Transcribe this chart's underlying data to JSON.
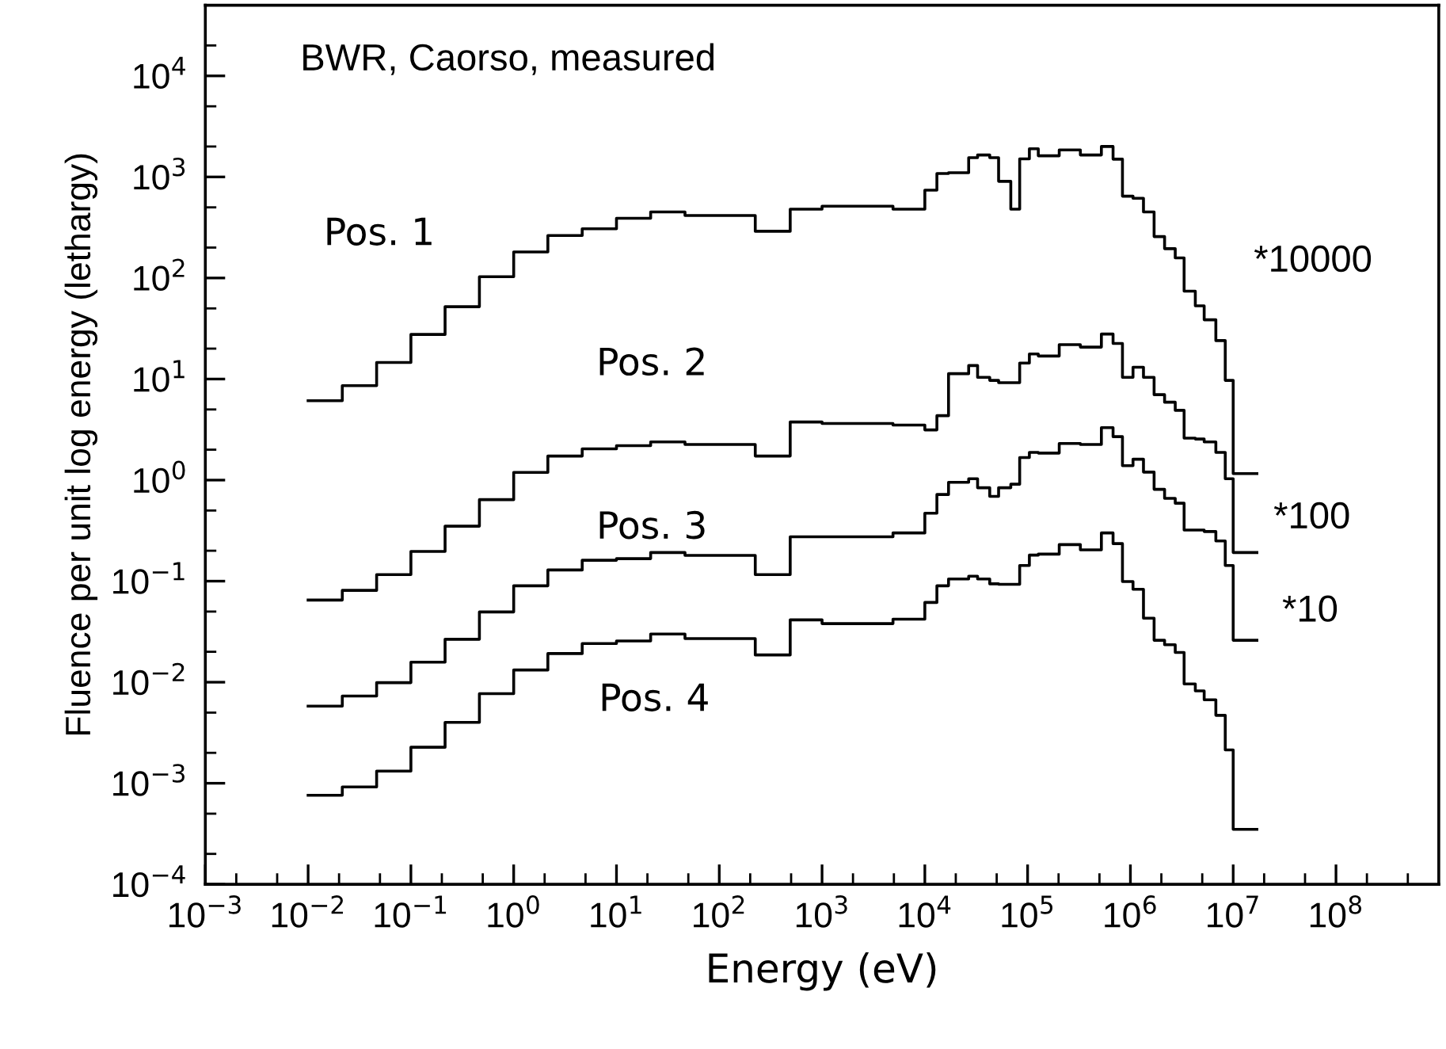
{
  "chart_data": {
    "type": "step",
    "xlabel": "Energy (eV)",
    "ylabel": "Fluence per unit log energy (lethargy)",
    "log": "xy",
    "grid": false,
    "legend": false,
    "marker": "none",
    "line_style": "solid",
    "xlim": [
      0.001,
      1000000000
    ],
    "ylim": [
      0.0001,
      50000
    ],
    "xticks": [
      {
        "value": 0.001,
        "label": "10$^{−3}$"
      },
      {
        "value": 0.01,
        "label": "10$^{−2}$"
      },
      {
        "value": 0.1,
        "label": "10$^{−1}$"
      },
      {
        "value": 1,
        "label": "10$^{0}$"
      },
      {
        "value": 10,
        "label": "10$^{1}$"
      },
      {
        "value": 100,
        "label": "10$^{2}$"
      },
      {
        "value": 1000,
        "label": "10$^{3}$"
      },
      {
        "value": 10000,
        "label": "10$^{4}$"
      },
      {
        "value": 100000,
        "label": "10$^{5}$"
      },
      {
        "value": 1000000,
        "label": "10$^{6}$"
      },
      {
        "value": 10000000,
        "label": "10$^{7}$"
      },
      {
        "value": 100000000,
        "label": "10$^{8}$"
      }
    ],
    "yticks": [
      {
        "value": 0.0001,
        "label": "10$^{−4}$"
      },
      {
        "value": 0.001,
        "label": "10$^{−3}$"
      },
      {
        "value": 0.01,
        "label": "10$^{−2}$"
      },
      {
        "value": 0.1,
        "label": "10$^{−1}$"
      },
      {
        "value": 1,
        "label": "10$^{0}$"
      },
      {
        "value": 10,
        "label": "10$^{1}$"
      },
      {
        "value": 100,
        "label": "10$^{2}$"
      },
      {
        "value": 1000,
        "label": "10$^{3}$"
      },
      {
        "value": 10000,
        "label": "10$^{4}$"
      }
    ],
    "x": [
      0.01,
      0.0215,
      0.0464,
      0.1,
      0.215,
      0.464,
      1,
      2.15,
      4.64,
      10,
      21.5,
      46.4,
      224,
      490,
      1000,
      4900,
      10000,
      13100,
      17000,
      26700,
      32600,
      42800,
      52200,
      68600,
      83700,
      104000,
      127000,
      203000,
      326000,
      522000,
      678000,
      837000,
      1060000,
      1340000,
      1700000,
      2150000,
      2730000,
      3330000,
      4280000,
      5220000,
      6780000,
      8370000,
      10000000,
      17000000
    ],
    "series": [
      {
        "name": "Pos. 1",
        "color": "#000000",
        "values": [
          6.1,
          8.6,
          14.6,
          27.6,
          52,
          103,
          181,
          263,
          307,
          390,
          450,
          415,
          290,
          480,
          513,
          480,
          740,
          1080,
          1100,
          1550,
          1650,
          1550,
          905,
          480,
          1510,
          1900,
          1620,
          1850,
          1650,
          2000,
          1500,
          645,
          615,
          450,
          257,
          195,
          158,
          74,
          53,
          38.6,
          24,
          9.7,
          1.16,
          1.16
        ]
      },
      {
        "name": "Pos. 2",
        "color": "#000000",
        "values": [
          0.065,
          0.081,
          0.116,
          0.197,
          0.35,
          0.64,
          1.19,
          1.73,
          2.04,
          2.19,
          2.39,
          2.25,
          1.73,
          3.76,
          3.63,
          3.5,
          3.14,
          4.34,
          11.3,
          13.6,
          10.4,
          9.7,
          9.2,
          9.2,
          14.4,
          17.7,
          16.9,
          21.9,
          20.7,
          27.9,
          22.5,
          10.4,
          13.1,
          10.4,
          7.0,
          5.9,
          4.9,
          2.6,
          2.55,
          2.39,
          1.88,
          1.03,
          0.192,
          0.192
        ]
      },
      {
        "name": "Pos. 3",
        "color": "#000000",
        "values": [
          0.0058,
          0.0073,
          0.0099,
          0.0158,
          0.0266,
          0.0496,
          0.09,
          0.129,
          0.161,
          0.167,
          0.192,
          0.18,
          0.116,
          0.275,
          0.275,
          0.3,
          0.47,
          0.72,
          0.95,
          1.03,
          0.84,
          0.69,
          0.84,
          0.91,
          1.67,
          1.88,
          1.85,
          2.3,
          2.25,
          3.3,
          2.69,
          1.39,
          1.61,
          1.2,
          0.81,
          0.66,
          0.59,
          0.32,
          0.32,
          0.31,
          0.25,
          0.143,
          0.026,
          0.026
        ]
      },
      {
        "name": "Pos. 4",
        "color": "#000000",
        "values": [
          0.00076,
          0.00092,
          0.00132,
          0.00227,
          0.004,
          0.0077,
          0.0132,
          0.0192,
          0.0241,
          0.0256,
          0.03,
          0.027,
          0.0186,
          0.0414,
          0.038,
          0.042,
          0.0615,
          0.09,
          0.105,
          0.112,
          0.105,
          0.094,
          0.093,
          0.093,
          0.143,
          0.181,
          0.185,
          0.23,
          0.204,
          0.3,
          0.235,
          0.099,
          0.083,
          0.043,
          0.026,
          0.0235,
          0.0197,
          0.0096,
          0.0082,
          0.0067,
          0.0047,
          0.00214,
          0.00035,
          0.00035
        ]
      }
    ],
    "annotations": [
      "BWR, Caorso, measured",
      "*10000",
      "*100",
      "*10"
    ]
  }
}
